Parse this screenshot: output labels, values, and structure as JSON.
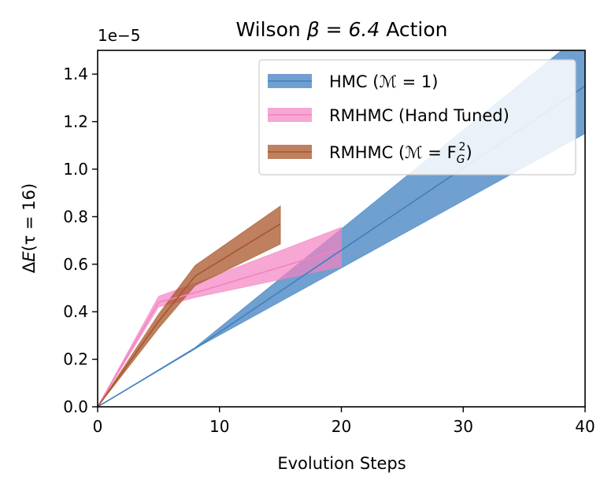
{
  "chart_data": {
    "type": "line",
    "title_prefix": "Wilson ",
    "title_math": "β = 6.4",
    "title_suffix": " Action",
    "xlabel": "Evolution Steps",
    "ylabel_delta": "Δ",
    "ylabel_E": "E",
    "ylabel_rest": "(τ = 16)",
    "offset_text_base": "1e",
    "offset_text_exp": "−5",
    "xlim": [
      0,
      40
    ],
    "ylim": [
      0,
      1.5
    ],
    "xticks": [
      0,
      10,
      20,
      30,
      40
    ],
    "xtick_labels": [
      "0",
      "10",
      "20",
      "30",
      "40"
    ],
    "yticks": [
      0.0,
      0.2,
      0.4,
      0.6,
      0.8,
      1.0,
      1.2,
      1.4
    ],
    "ytick_labels": [
      "0.0",
      "0.2",
      "0.4",
      "0.6",
      "0.8",
      "1.0",
      "1.2",
      "1.4"
    ],
    "legend_position": "upper-right",
    "series": [
      {
        "name": "HMC (ℳ = 1)",
        "legend_parts": [
          "HMC (",
          "ℳ",
          " = 1)"
        ],
        "color": "#4080bf",
        "band_opacity": 0.75,
        "x": [
          0,
          8,
          40
        ],
        "y": [
          0,
          0.245,
          1.35
        ],
        "lower": [
          0,
          0.245,
          1.15
        ],
        "upper": [
          0,
          0.25,
          1.58
        ]
      },
      {
        "name": "RMHMC (Hand Tuned)",
        "legend_parts": [
          "RMHMC (Hand Tuned)"
        ],
        "color": "#f382c0",
        "band_opacity": 0.7,
        "x": [
          0,
          5,
          8,
          20
        ],
        "y": [
          0,
          0.44,
          0.48,
          0.665
        ],
        "lower": [
          0,
          0.42,
          0.46,
          0.59
        ],
        "upper": [
          0,
          0.465,
          0.52,
          0.755
        ]
      },
      {
        "name": "RMHMC (ℳ = F_G²)",
        "legend_parts": [
          "RMHMC (",
          "ℳ",
          " = F",
          "G",
          "2",
          ")"
        ],
        "color": "#a8562a",
        "band_opacity": 0.75,
        "x": [
          0,
          5,
          8,
          15
        ],
        "y": [
          0,
          0.36,
          0.55,
          0.77
        ],
        "lower": [
          0,
          0.33,
          0.51,
          0.685
        ],
        "upper": [
          0,
          0.39,
          0.595,
          0.845
        ]
      }
    ]
  }
}
